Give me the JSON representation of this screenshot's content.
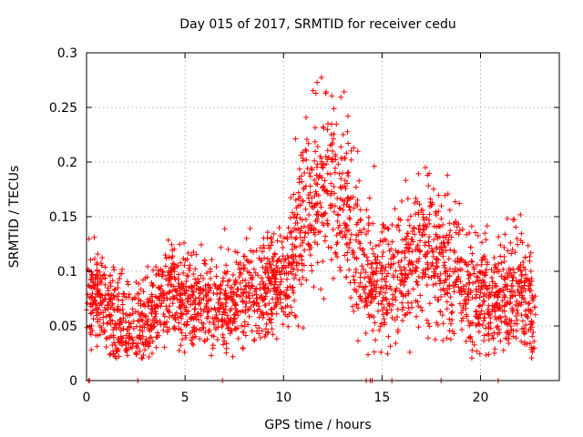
{
  "chart_data": {
    "type": "scatter",
    "title": "Day 015 of 2017, SRMTID for receiver cedu",
    "xlabel": "GPS time / hours",
    "ylabel": "SRMTID / TECUs",
    "xlim": [
      0,
      24
    ],
    "ylim": [
      0,
      0.3
    ],
    "xticks": [
      0,
      5,
      10,
      15,
      20
    ],
    "xtick_labels": [
      "0",
      "5",
      "10",
      "15",
      "20"
    ],
    "yticks": [
      0,
      0.05,
      0.1,
      0.15,
      0.2,
      0.25,
      0.3
    ],
    "ytick_labels": [
      "0",
      "0.05",
      "0.1",
      "0.15",
      "0.2",
      "0.25",
      "0.3"
    ],
    "grid": true,
    "marker": "+",
    "color": "#ff0000",
    "series": [
      {
        "name": "SRMTID",
        "trend": {
          "x": [
            0,
            0.5,
            1,
            1.5,
            2,
            2.5,
            3,
            3.5,
            4,
            4.5,
            5,
            5.5,
            6,
            6.5,
            7,
            7.5,
            8,
            8.5,
            9,
            9.5,
            10,
            10.5,
            11,
            11.5,
            12,
            12.5,
            13,
            13.5,
            14,
            14.5,
            15,
            15.5,
            16,
            16.5,
            17,
            17.5,
            18,
            18.5,
            19,
            19.5,
            20,
            20.5,
            21,
            21.5,
            22,
            22.5,
            22.8
          ],
          "y": [
            0.075,
            0.08,
            0.07,
            0.058,
            0.045,
            0.048,
            0.058,
            0.068,
            0.078,
            0.082,
            0.075,
            0.07,
            0.072,
            0.068,
            0.066,
            0.07,
            0.074,
            0.08,
            0.084,
            0.086,
            0.085,
            0.12,
            0.155,
            0.17,
            0.18,
            0.175,
            0.165,
            0.13,
            0.105,
            0.09,
            0.088,
            0.095,
            0.1,
            0.11,
            0.12,
            0.118,
            0.11,
            0.1,
            0.09,
            0.08,
            0.075,
            0.072,
            0.075,
            0.08,
            0.085,
            0.07,
            0.055
          ]
        },
        "spread": {
          "x": [
            0,
            10,
            10.5,
            12,
            13.5,
            14.5,
            17,
            20,
            22.8
          ],
          "y": [
            0.022,
            0.022,
            0.035,
            0.045,
            0.035,
            0.028,
            0.032,
            0.028,
            0.025
          ]
        },
        "point_count": 2600,
        "zero_points_x": [
          0.1,
          0.15,
          2.6,
          6.9,
          14.2,
          14.4,
          14.5,
          15.5,
          18.0,
          20.9
        ]
      }
    ]
  }
}
